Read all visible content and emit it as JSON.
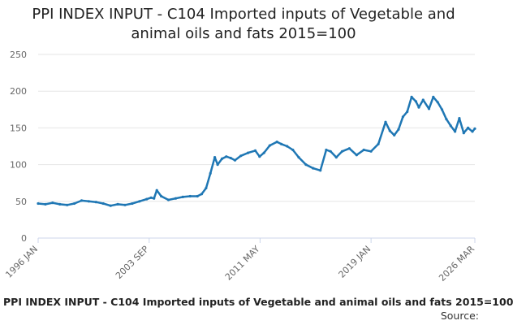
{
  "chart_data": {
    "type": "line",
    "title_lines": [
      "PPI INDEX INPUT - C104 Imported inputs of Vegetable and",
      "animal oils and fats 2015=100"
    ],
    "xlabel": "",
    "ylabel": "",
    "ylim": [
      0,
      250
    ],
    "yticks": [
      "0",
      "50",
      "100",
      "150",
      "200",
      "250"
    ],
    "xlim": [
      1996.0,
      2026.17
    ],
    "xticks": [
      {
        "label": "1996 JAN",
        "x": 1996.0
      },
      {
        "label": "2003 SEP",
        "x": 2003.67
      },
      {
        "label": "2011 MAY",
        "x": 2011.33
      },
      {
        "label": "2019 JAN",
        "x": 2019.0
      },
      {
        "label": "2026 MAR",
        "x": 2026.17
      }
    ],
    "grid": true,
    "line_color": "#1f77b4",
    "series": [
      {
        "name": "PPI INDEX INPUT - C104 Imported inputs of Vegetable and animal oils and fats 2015=100",
        "x": [
          1996.0,
          1996.5,
          1997.0,
          1997.5,
          1998.0,
          1998.5,
          1999.0,
          1999.5,
          2000.0,
          2000.5,
          2001.0,
          2001.5,
          2002.0,
          2002.5,
          2003.0,
          2003.5,
          2003.8,
          2004.0,
          2004.2,
          2004.5,
          2005.0,
          2005.5,
          2006.0,
          2006.5,
          2007.0,
          2007.3,
          2007.6,
          2007.9,
          2008.2,
          2008.4,
          2008.7,
          2009.0,
          2009.3,
          2009.6,
          2010.0,
          2010.5,
          2011.0,
          2011.3,
          2011.6,
          2012.0,
          2012.5,
          2012.8,
          2013.2,
          2013.6,
          2014.0,
          2014.5,
          2015.0,
          2015.5,
          2015.9,
          2016.2,
          2016.6,
          2017.0,
          2017.5,
          2018.0,
          2018.5,
          2019.0,
          2019.5,
          2020.0,
          2020.3,
          2020.6,
          2020.9,
          2021.2,
          2021.5,
          2021.8,
          2022.1,
          2022.3,
          2022.6,
          2023.0,
          2023.3,
          2023.6,
          2023.9,
          2024.2,
          2024.5,
          2024.8,
          2025.1,
          2025.4,
          2025.7,
          2026.0,
          2026.17
        ],
        "values": [
          47,
          46,
          48,
          46,
          45,
          47,
          51,
          50,
          49,
          47,
          44,
          46,
          45,
          47,
          50,
          53,
          55,
          54,
          65,
          57,
          52,
          54,
          56,
          57,
          57,
          60,
          68,
          88,
          110,
          100,
          108,
          111,
          109,
          106,
          112,
          116,
          119,
          111,
          116,
          126,
          131,
          128,
          125,
          120,
          110,
          100,
          95,
          92,
          120,
          118,
          110,
          118,
          122,
          113,
          120,
          118,
          128,
          158,
          146,
          140,
          148,
          165,
          172,
          192,
          186,
          178,
          188,
          176,
          192,
          185,
          175,
          162,
          153,
          145,
          163,
          143,
          150,
          145,
          149
        ]
      }
    ]
  },
  "footer": {
    "title": "PPI INDEX INPUT - C104 Imported inputs of Vegetable and animal oils and fats 2015=100",
    "source": "Source:"
  }
}
